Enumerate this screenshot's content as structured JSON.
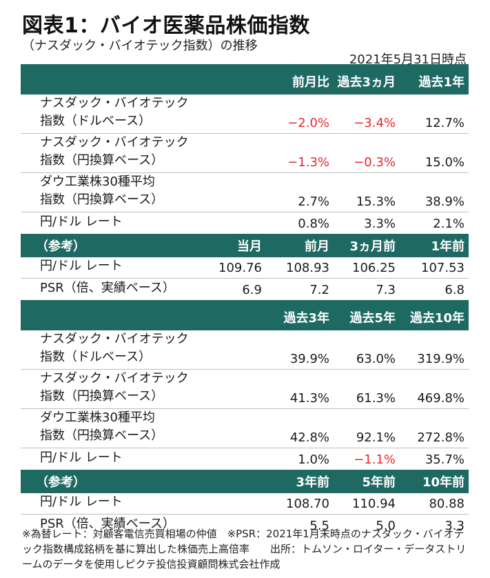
{
  "title": "図表1：バイオ医薬品株価指数",
  "subtitle": "（ナスダック・バイオテック指数）の推移",
  "as_of": "2021年5月31日時点",
  "table1": {
    "headers": [
      "前月比",
      "過去3ヵ月",
      "過去1年"
    ],
    "rows": [
      {
        "l1": "ナスダック・バイオテック",
        "l2": "指数（ドルベース）",
        "v": [
          "−2.0%",
          "−3.4%",
          "12.7%"
        ]
      },
      {
        "l1": "ナスダック・バイオテック",
        "l2": "指数（円換算ベース）",
        "v": [
          "−1.3%",
          "−0.3%",
          "15.0%"
        ]
      },
      {
        "l1": "ダウ工業株30種平均",
        "l2": "指数（円換算ベース）",
        "v": [
          "2.7%",
          "15.3%",
          "38.9%"
        ]
      },
      {
        "l1": "円/ドル レート",
        "v": [
          "0.8%",
          "3.3%",
          "2.1%"
        ]
      }
    ],
    "ref_label": "（参考）",
    "ref_headers": [
      "当月",
      "前月",
      "3ヵ月前",
      "1年前"
    ],
    "ref_rows": [
      {
        "l1": "円/ドル レート",
        "v": [
          "109.76",
          "108.93",
          "106.25",
          "107.53"
        ]
      },
      {
        "l1": "PSR（倍、実績ベース）",
        "v": [
          "6.9",
          "7.2",
          "7.3",
          "6.8"
        ]
      }
    ]
  },
  "table2": {
    "headers": [
      "過去3年",
      "過去5年",
      "過去10年"
    ],
    "rows": [
      {
        "l1": "ナスダック・バイオテック",
        "l2": "指数（ドルベース）",
        "v": [
          "39.9%",
          "63.0%",
          "319.9%"
        ]
      },
      {
        "l1": "ナスダック・バイオテック",
        "l2": "指数（円換算ベース）",
        "v": [
          "41.3%",
          "61.3%",
          "469.8%"
        ]
      },
      {
        "l1": "ダウ工業株30種平均",
        "l2": "指数（円換算ベース）",
        "v": [
          "42.8%",
          "92.1%",
          "272.8%"
        ]
      },
      {
        "l1": "円/ドル レート",
        "v": [
          "1.0%",
          "−1.1%",
          "35.7%"
        ]
      }
    ],
    "ref_label": "（参考）",
    "ref_headers": [
      "3年前",
      "5年前",
      "10年前"
    ],
    "ref_rows": [
      {
        "l1": "円/ドル レート",
        "v": [
          "108.70",
          "110.94",
          "80.88"
        ]
      },
      {
        "l1": "PSR（倍、実績ベース）",
        "v": [
          "5.5",
          "5.0",
          "3.3"
        ]
      }
    ]
  },
  "note": "※為替レート：対顧客電信売買相場の仲値　※PSR：2021年1月末時点のナスダック・バイオテック指数構成銘柄を基に算出した株価売上高倍率　　出所：トムソン・ロイター・データストリームのデータを使用しピクテ投信投資顧問株式会社作成",
  "colors": {
    "header_bg": "#1e6a62",
    "negative": "#e8262b"
  }
}
